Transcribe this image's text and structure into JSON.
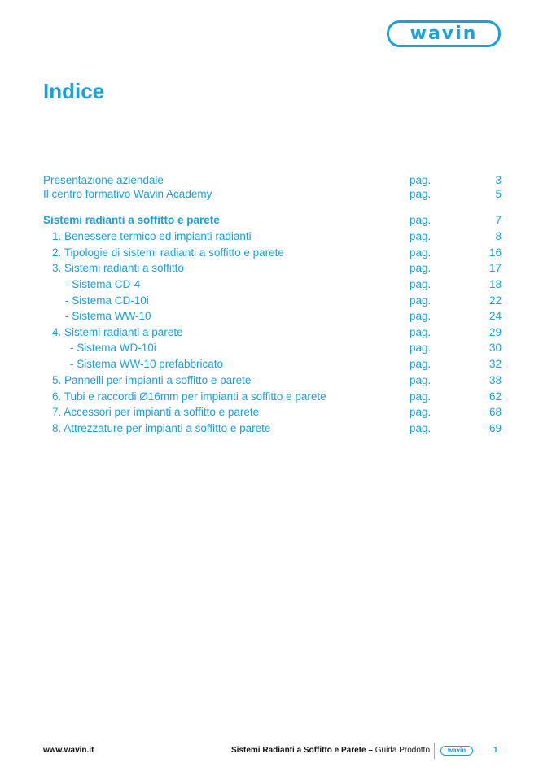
{
  "logo": "wavin",
  "title": "Indice",
  "entries": [
    {
      "label": "Presentazione aziendale",
      "pag": "pag.",
      "num": "3",
      "level": 0,
      "bold": false
    },
    {
      "label": "Il centro formativo Wavin Academy",
      "pag": "pag.",
      "num": "5",
      "level": 0,
      "bold": false
    },
    {
      "label": "Sistemi radianti a soffitto e parete",
      "pag": "pag.",
      "num": "7",
      "level": 0,
      "bold": true
    },
    {
      "label": "1. Benessere termico ed impianti radianti",
      "pag": "pag.",
      "num": "8",
      "level": 1,
      "bold": false
    },
    {
      "label": "2. Tipologie di sistemi radianti a soffitto e parete",
      "pag": "pag.",
      "num": "16",
      "level": 1,
      "bold": false
    },
    {
      "label": "3. Sistemi radianti a soffitto",
      "pag": "pag.",
      "num": "17",
      "level": 1,
      "bold": false
    },
    {
      "label": "- Sistema CD-4",
      "pag": "pag.",
      "num": "18",
      "level": 2,
      "bold": false
    },
    {
      "label": "- Sistema CD-10i",
      "pag": "pag.",
      "num": "22",
      "level": 2,
      "bold": false
    },
    {
      "label": "- Sistema WW-10",
      "pag": "pag.",
      "num": "24",
      "level": 2,
      "bold": false
    },
    {
      "label": "4. Sistemi radianti a parete",
      "pag": "pag.",
      "num": "29",
      "level": 1,
      "bold": false
    },
    {
      "label": "- Sistema WD-10i",
      "pag": "pag.",
      "num": "30",
      "level": 3,
      "bold": false
    },
    {
      "label": "- Sistema WW-10 prefabbricato",
      "pag": "pag.",
      "num": "32",
      "level": 3,
      "bold": false
    },
    {
      "label": "5. Pannelli per impianti a soffitto e parete",
      "pag": "pag.",
      "num": "38",
      "level": 1,
      "bold": false
    },
    {
      "label": "6. Tubi e raccordi Ø16mm per impianti a soffitto e parete",
      "pag": "pag.",
      "num": "62",
      "level": 1,
      "bold": false
    },
    {
      "label": "7. Accessori per impianti a soffitto e parete",
      "pag": "pag.",
      "num": "68",
      "level": 1,
      "bold": false
    },
    {
      "label": "8. Attrezzature per impianti a soffitto e parete",
      "pag": "pag.",
      "num": "69",
      "level": 1,
      "bold": false
    }
  ],
  "footer": {
    "url": "www.wavin.it",
    "doc_title": "Sistemi Radianti a Soffitto e Parete",
    "doc_sep": " – ",
    "doc_sub": "Guida Prodotto",
    "logo": "wavin",
    "page": "1"
  },
  "colors": {
    "accent": "#1aa0dc"
  }
}
